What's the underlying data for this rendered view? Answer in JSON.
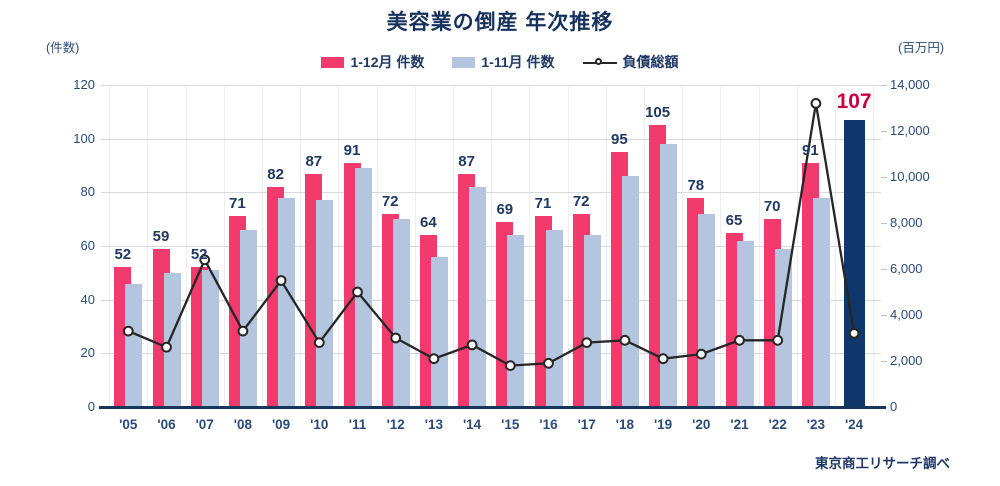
{
  "title": "美容業の倒産 年次推移",
  "left_axis_unit": "(件数)",
  "right_axis_unit": "(百万円)",
  "source": "東京商工リサーチ調べ",
  "colors": {
    "bar_dec": "#F23A6C",
    "bar_nov": "#B3C5DF",
    "bar_highlight": "#0E386B",
    "line": "#262626",
    "marker_fill": "#FFFFFF",
    "label": "#1F3864",
    "highlight_label": "#C80042",
    "grid": "#D9D9D9",
    "baseline": "#17365D"
  },
  "chart_data": {
    "type": "bar+line",
    "categories": [
      "'05",
      "'06",
      "'07",
      "'08",
      "'09",
      "'10",
      "'11",
      "'12",
      "'13",
      "'14",
      "'15",
      "'16",
      "'17",
      "'18",
      "'19",
      "'20",
      "'21",
      "'22",
      "'23",
      "'24"
    ],
    "series": [
      {
        "name": "1-12月 件数",
        "type": "bar",
        "axis": "left",
        "values": [
          52,
          59,
          52,
          71,
          82,
          87,
          91,
          72,
          64,
          87,
          69,
          71,
          72,
          95,
          105,
          78,
          65,
          70,
          91,
          null
        ]
      },
      {
        "name": "1-11月 件数",
        "type": "bar",
        "axis": "left",
        "values": [
          46,
          50,
          51,
          66,
          78,
          77,
          89,
          70,
          56,
          82,
          64,
          66,
          64,
          86,
          98,
          72,
          62,
          59,
          78,
          null
        ]
      },
      {
        "name": "負債総額",
        "type": "line",
        "axis": "right",
        "values": [
          3300,
          2600,
          6400,
          3300,
          5500,
          2800,
          5000,
          3000,
          2100,
          2700,
          1800,
          1900,
          2800,
          2900,
          2100,
          2300,
          2900,
          2900,
          13200,
          3200
        ]
      }
    ],
    "highlight": {
      "category": "'24",
      "value": 107
    },
    "left_axis": {
      "min": 0,
      "max": 120,
      "step": 20
    },
    "right_axis": {
      "min": 0,
      "max": 14000,
      "step": 2000
    },
    "grid": "horizontal",
    "legend_position": "top"
  }
}
